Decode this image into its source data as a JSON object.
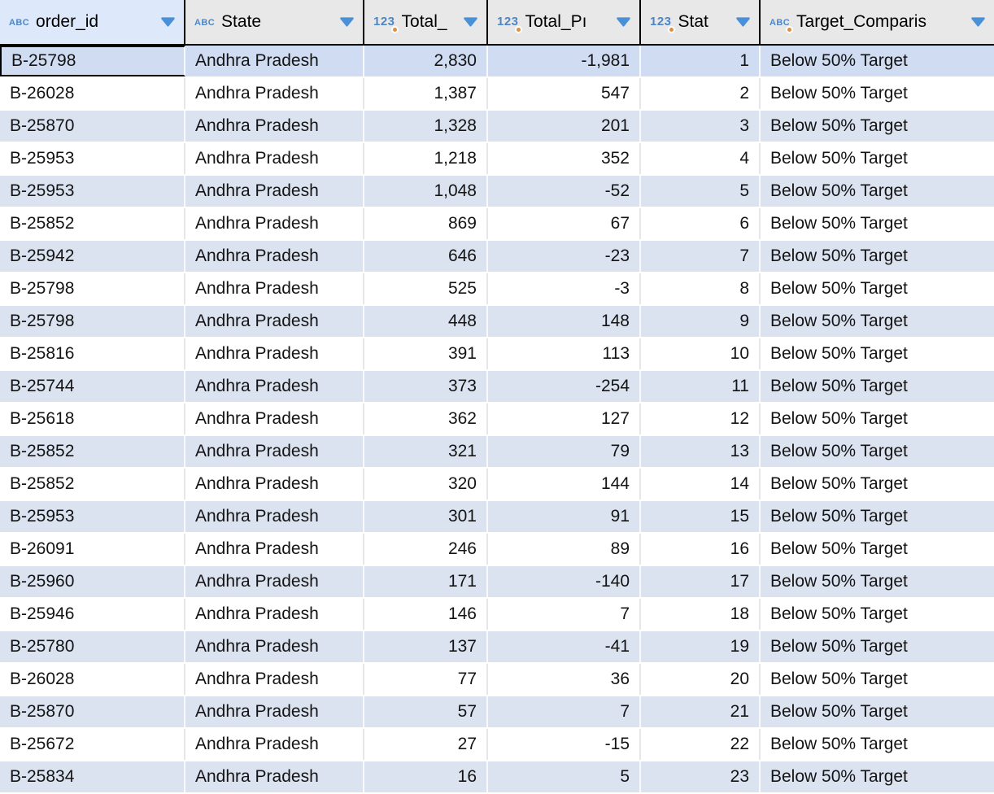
{
  "table": {
    "columns": [
      {
        "name": "order_id",
        "label": "order_id",
        "type": "text",
        "type_label": "ABC",
        "has_dot": false,
        "align": "left",
        "selected": true
      },
      {
        "name": "state",
        "label": "State",
        "type": "text",
        "type_label": "ABC",
        "has_dot": false,
        "align": "left",
        "selected": false
      },
      {
        "name": "total",
        "label": "Total_",
        "type": "number",
        "type_label": "123",
        "has_dot": true,
        "align": "right",
        "selected": false
      },
      {
        "name": "total-p",
        "label": "Total_Pı",
        "type": "number",
        "type_label": "123",
        "has_dot": true,
        "align": "right",
        "selected": false
      },
      {
        "name": "stat",
        "label": "Stat",
        "type": "number",
        "type_label": "123",
        "has_dot": true,
        "align": "right",
        "selected": false
      },
      {
        "name": "target-comparison",
        "label": "Target_Comparis",
        "type": "text",
        "type_label": "ABC",
        "has_dot": true,
        "align": "left",
        "selected": false
      }
    ],
    "rows": [
      [
        "B-25798",
        "Andhra Pradesh",
        "2,830",
        "-1,981",
        "1",
        "Below 50% Target"
      ],
      [
        "B-26028",
        "Andhra Pradesh",
        "1,387",
        "547",
        "2",
        "Below 50% Target"
      ],
      [
        "B-25870",
        "Andhra Pradesh",
        "1,328",
        "201",
        "3",
        "Below 50% Target"
      ],
      [
        "B-25953",
        "Andhra Pradesh",
        "1,218",
        "352",
        "4",
        "Below 50% Target"
      ],
      [
        "B-25953",
        "Andhra Pradesh",
        "1,048",
        "-52",
        "5",
        "Below 50% Target"
      ],
      [
        "B-25852",
        "Andhra Pradesh",
        "869",
        "67",
        "6",
        "Below 50% Target"
      ],
      [
        "B-25942",
        "Andhra Pradesh",
        "646",
        "-23",
        "7",
        "Below 50% Target"
      ],
      [
        "B-25798",
        "Andhra Pradesh",
        "525",
        "-3",
        "8",
        "Below 50% Target"
      ],
      [
        "B-25798",
        "Andhra Pradesh",
        "448",
        "148",
        "9",
        "Below 50% Target"
      ],
      [
        "B-25816",
        "Andhra Pradesh",
        "391",
        "113",
        "10",
        "Below 50% Target"
      ],
      [
        "B-25744",
        "Andhra Pradesh",
        "373",
        "-254",
        "11",
        "Below 50% Target"
      ],
      [
        "B-25618",
        "Andhra Pradesh",
        "362",
        "127",
        "12",
        "Below 50% Target"
      ],
      [
        "B-25852",
        "Andhra Pradesh",
        "321",
        "79",
        "13",
        "Below 50% Target"
      ],
      [
        "B-25852",
        "Andhra Pradesh",
        "320",
        "144",
        "14",
        "Below 50% Target"
      ],
      [
        "B-25953",
        "Andhra Pradesh",
        "301",
        "91",
        "15",
        "Below 50% Target"
      ],
      [
        "B-26091",
        "Andhra Pradesh",
        "246",
        "89",
        "16",
        "Below 50% Target"
      ],
      [
        "B-25960",
        "Andhra Pradesh",
        "171",
        "-140",
        "17",
        "Below 50% Target"
      ],
      [
        "B-25946",
        "Andhra Pradesh",
        "146",
        "7",
        "18",
        "Below 50% Target"
      ],
      [
        "B-25780",
        "Andhra Pradesh",
        "137",
        "-41",
        "19",
        "Below 50% Target"
      ],
      [
        "B-26028",
        "Andhra Pradesh",
        "77",
        "36",
        "20",
        "Below 50% Target"
      ],
      [
        "B-25870",
        "Andhra Pradesh",
        "57",
        "7",
        "21",
        "Below 50% Target"
      ],
      [
        "B-25672",
        "Andhra Pradesh",
        "27",
        "-15",
        "22",
        "Below 50% Target"
      ],
      [
        "B-25834",
        "Andhra Pradesh",
        "16",
        "5",
        "23",
        "Below 50% Target"
      ]
    ],
    "selected_cell": {
      "row": 0,
      "col": 0,
      "value": "B-25798"
    }
  },
  "colors": {
    "header_bg": "#e9e8e8",
    "header_selected_bg": "#dde8fa",
    "row_blue": "#dbe3f1",
    "row_active_blue": "#cfdcf2",
    "selected_cell_bg": "#c9daf5",
    "separator_on_blue": "#f7f9fc",
    "separator_on_white": "#e7e7e7",
    "icon_blue": "#4c86c6",
    "arrow_blue": "#4a90d9",
    "dot_orange": "#dd8f41",
    "border_black": "#000000"
  }
}
